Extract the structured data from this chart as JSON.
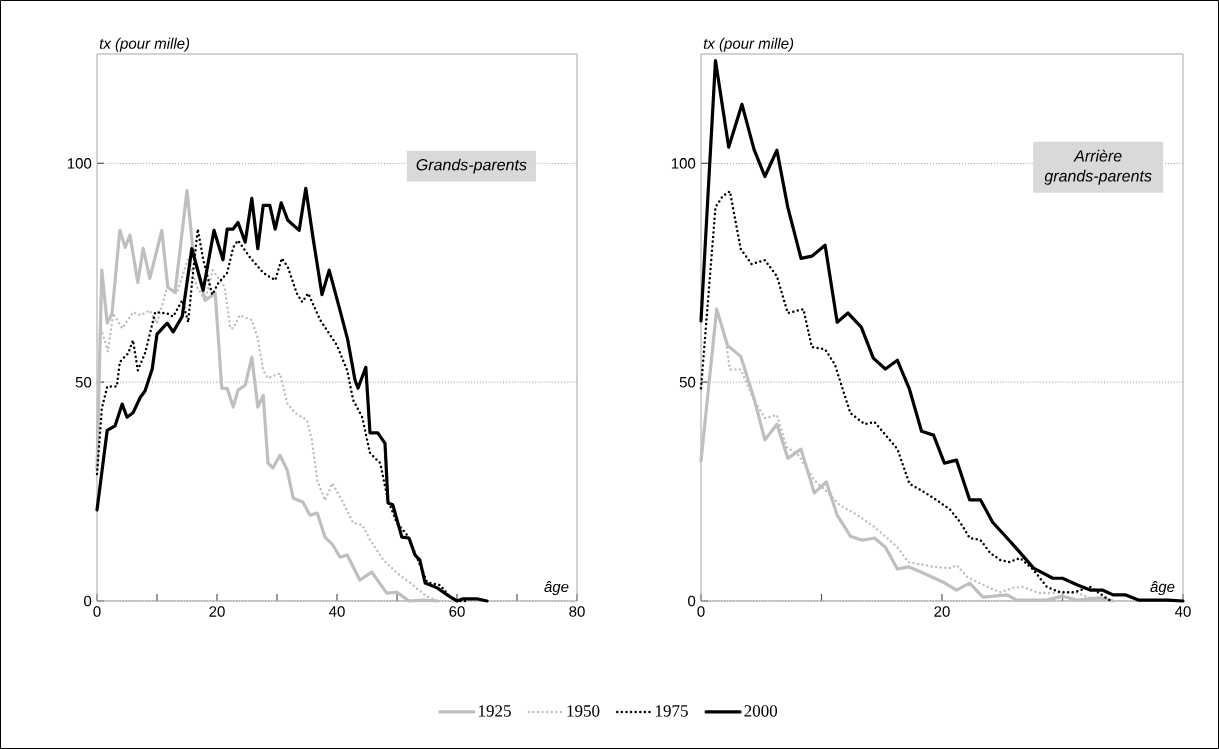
{
  "chart_data": [
    {
      "type": "line",
      "title": "Grands-parents",
      "xlabel": "âge",
      "ylabel": "tx (pour mille)",
      "xlim": [
        0,
        80
      ],
      "xticks": [
        0,
        {
          "value": 10,
          "label": null
        },
        20,
        {
          "value": 30,
          "label": null
        },
        40,
        {
          "value": 50,
          "label": null
        },
        60,
        {
          "value": 70,
          "label": null
        },
        80
      ],
      "ylim": [
        0,
        125
      ],
      "yticks": [
        0,
        50,
        100
      ],
      "grid": "y",
      "legend": "bottom",
      "series": [
        {
          "name": "1925",
          "color": "#bfbfbf",
          "line_style": "solid",
          "x": [
            0,
            0.8,
            1.7,
            2.5,
            3.8,
            4.7,
            5.5,
            6.8,
            7.7,
            8.8,
            10.8,
            11.8,
            13,
            15,
            16,
            18,
            19.7,
            20.8,
            21.7,
            22.7,
            23.5,
            24.7,
            25.8,
            26.8,
            27.7,
            28.5,
            29.3,
            30.5,
            31.7,
            32.7,
            34.3,
            35.5,
            36.7,
            38,
            39.3,
            40.5,
            41.7,
            43.8,
            45.8,
            48.3,
            50,
            51,
            52,
            54.3,
            56.7
          ],
          "values": [
            30,
            75.6,
            63.5,
            65.7,
            84.7,
            80.8,
            83.6,
            72.8,
            80.6,
            73.7,
            84.7,
            71.7,
            70.5,
            93.8,
            80.1,
            68.7,
            70.3,
            48.6,
            48.6,
            44.3,
            48.2,
            49.3,
            55.7,
            44.3,
            47,
            31.5,
            30.4,
            33.3,
            29.9,
            23.5,
            22.6,
            19.6,
            20.1,
            14.6,
            12.8,
            10,
            10.5,
            4.8,
            6.6,
            1.8,
            2,
            1,
            0,
            0.2,
            0
          ]
        },
        {
          "name": "1950",
          "color": "#bfbfbf",
          "line_style": "dotted",
          "x": [
            0,
            0.5,
            1.3,
            1.8,
            2.7,
            4.2,
            6,
            7.2,
            8.8,
            10,
            11.7,
            13.3,
            15.2,
            16.7,
            18,
            19.3,
            21.3,
            22.2,
            22.7,
            23.8,
            25.8,
            26.8,
            27.7,
            28.5,
            30.5,
            31.7,
            33,
            35,
            35.8,
            36.7,
            38,
            39.2,
            41,
            42.7,
            44.2,
            45.5,
            47.7,
            50,
            52.2,
            55,
            56.8
          ],
          "values": [
            36.8,
            62.6,
            59.6,
            57,
            65.7,
            62.3,
            66,
            65.3,
            66.4,
            63.5,
            71.7,
            70.3,
            78.3,
            71.7,
            68.7,
            75.6,
            71.7,
            62.3,
            62.3,
            65.3,
            64.2,
            60,
            52.7,
            50.9,
            52,
            45.2,
            43,
            41.3,
            36.8,
            27.6,
            23,
            26.9,
            22.6,
            17.8,
            17.4,
            14,
            9.4,
            6.4,
            4.1,
            1,
            0
          ]
        },
        {
          "name": "1975",
          "color": "#000000",
          "line_style": "dotted",
          "x": [
            0,
            0.8,
            1.7,
            3.3,
            3.8,
            5.2,
            6,
            6.8,
            8,
            8.8,
            9.7,
            11.7,
            12.7,
            14.2,
            15.2,
            16,
            16.8,
            17.7,
            19.2,
            20.2,
            21.7,
            22.7,
            23.5,
            25.5,
            27.7,
            29.7,
            30.8,
            31.8,
            33.3,
            34.2,
            35.2,
            37.2,
            40,
            41.7,
            42.7,
            44.2,
            45.5,
            47.2,
            48.5,
            50,
            51.7,
            53.3,
            55,
            57.2,
            58.8,
            60,
            62
          ],
          "values": [
            29,
            44,
            49,
            49,
            54.6,
            56.6,
            59.6,
            52.7,
            56.6,
            61,
            66,
            65.7,
            65,
            68.7,
            63.7,
            75,
            85,
            78,
            70,
            72.6,
            75,
            80.8,
            82.4,
            78.5,
            75,
            73.3,
            78.3,
            76.3,
            70.3,
            68.3,
            70.3,
            64.2,
            58.4,
            52.7,
            45.9,
            42,
            33.8,
            31.5,
            23,
            17.8,
            15,
            10,
            4.3,
            3.6,
            1,
            0,
            0
          ]
        },
        {
          "name": "2000",
          "color": "#000000",
          "line_style": "solid",
          "x": [
            0,
            1.7,
            3,
            4.2,
            5,
            6,
            7.2,
            8,
            9.2,
            10,
            11.7,
            12.7,
            14.2,
            15.8,
            17.7,
            19.5,
            21,
            21.7,
            22.7,
            23.5,
            24.7,
            25.8,
            26.8,
            27.7,
            28.8,
            29.7,
            30.7,
            31.8,
            33.7,
            34.8,
            36,
            37.5,
            38.7,
            40.5,
            41.8,
            43,
            43.5,
            44.8,
            45.5,
            46.8,
            48,
            48.5,
            49.3,
            50.8,
            52,
            53,
            53.8,
            54.7,
            56.7,
            58.8,
            60,
            61,
            63.3,
            65
          ],
          "values": [
            20.8,
            39,
            40,
            45,
            42,
            43,
            46.5,
            48,
            53,
            61,
            63.5,
            61.5,
            65,
            80.5,
            71,
            84.7,
            78,
            85,
            85,
            86.5,
            82,
            92,
            80.5,
            90.4,
            90.4,
            85,
            91,
            87,
            84.7,
            94.3,
            83,
            70,
            75.6,
            66.4,
            59.6,
            50.5,
            48.6,
            53.4,
            38.4,
            38.4,
            36,
            22.4,
            22,
            14.6,
            14.4,
            10.5,
            9.4,
            4.1,
            3,
            1,
            0,
            0.5,
            0.5,
            0
          ]
        }
      ]
    },
    {
      "type": "line",
      "title": "Arrière grands-parents",
      "xlabel": "âge",
      "ylabel": "tx (pour mille)",
      "xlim": [
        0,
        40
      ],
      "xticks": [
        0,
        {
          "value": 10,
          "label": null
        },
        20,
        {
          "value": 30,
          "label": null
        },
        40
      ],
      "ylim": [
        0,
        125
      ],
      "yticks": [
        0,
        50,
        100
      ],
      "grid": "y",
      "series": [
        {
          "color": "#bfbfbf",
          "line_style": "solid",
          "x": [
            0,
            1.3,
            2.2,
            3.3,
            4.4,
            5.3,
            6.3,
            7.2,
            8.3,
            9.4,
            10.4,
            11.3,
            12.4,
            13.4,
            14.4,
            15.3,
            16.3,
            17.2,
            18.1,
            19.3,
            20.1,
            21.2,
            22.3,
            23.4,
            25.4,
            26.2,
            28.7,
            30,
            31.2,
            33.1,
            34.2
          ],
          "values": [
            32,
            66.7,
            58.4,
            55.9,
            46.3,
            36.8,
            40.4,
            32.6,
            34.7,
            24.7,
            27.2,
            19.6,
            14.8,
            13.9,
            14.4,
            12.3,
            7.3,
            7.8,
            6.8,
            5.3,
            4.3,
            2.5,
            4.1,
            0.9,
            1.4,
            0.2,
            0.2,
            1.1,
            0.2,
            0.7,
            0
          ]
        },
        {
          "color": "#bfbfbf",
          "line_style": "dotted",
          "x": [
            0,
            1.3,
            2,
            2.4,
            3.3,
            4.4,
            5.3,
            6.3,
            7.1,
            8.1,
            9.4,
            10.4,
            11.5,
            13,
            14.4,
            16.3,
            17.2,
            19.3,
            20.7,
            21.2,
            22.1,
            23.4,
            24.8,
            25.9,
            26.7,
            28.1,
            29.8,
            31.2,
            32.3,
            34.2
          ],
          "values": [
            32.6,
            66,
            60.4,
            52.9,
            52.9,
            45.9,
            41.8,
            42.5,
            35.2,
            33.3,
            27.6,
            25.1,
            21.9,
            19.6,
            16.9,
            12.3,
            8.9,
            7.8,
            7.5,
            8.2,
            5.5,
            3.7,
            2,
            3,
            3.2,
            1.8,
            1.8,
            1.8,
            0.7,
            0
          ]
        },
        {
          "color": "#000000",
          "line_style": "dotted",
          "x": [
            0,
            1.2,
            1.8,
            2.4,
            3.3,
            4.2,
            5.3,
            6.3,
            7.2,
            8.5,
            9.2,
            10.3,
            11.1,
            12.4,
            13.6,
            14.4,
            16.3,
            17.3,
            18.4,
            19.8,
            20.7,
            21.5,
            22.3,
            23.2,
            24,
            24.8,
            25.6,
            26.5,
            27.6,
            28.7,
            29.8,
            31,
            32.3,
            34
          ],
          "values": [
            48.6,
            90,
            92.5,
            93.6,
            80.4,
            77,
            77.9,
            74.2,
            65.8,
            66.7,
            58,
            57.5,
            54.1,
            42.9,
            40.4,
            40.9,
            34.7,
            26.8,
            25.1,
            22.6,
            20.8,
            18,
            14.4,
            13.9,
            11,
            9.4,
            8.9,
            9.8,
            7.1,
            3.2,
            2,
            2,
            3.2,
            0
          ]
        },
        {
          "color": "#000000",
          "line_style": "solid",
          "x": [
            0,
            1.2,
            2.3,
            3.4,
            4.4,
            5.3,
            6.3,
            7.2,
            8.3,
            9.2,
            10.3,
            11.3,
            12.2,
            13.3,
            14.3,
            15.3,
            16.3,
            17.3,
            18.3,
            19.3,
            20.2,
            21.2,
            22.3,
            23.2,
            24.2,
            25.4,
            26.5,
            27.6,
            29.2,
            30,
            31.2,
            32.3,
            33.3,
            34.2,
            35.2,
            36.3,
            38.7,
            40
          ],
          "values": [
            64,
            123.5,
            103.7,
            113.5,
            103.2,
            97,
            103,
            90,
            78.3,
            78.8,
            81.3,
            63.7,
            65.8,
            62.6,
            55.5,
            53,
            55,
            48.4,
            38.8,
            37.9,
            31.5,
            32.2,
            23.1,
            23.1,
            18,
            14.4,
            11,
            7.5,
            5.2,
            5.2,
            3.7,
            2.5,
            2.5,
            1.4,
            1.4,
            0.2,
            0.2,
            0
          ]
        }
      ]
    }
  ]
}
